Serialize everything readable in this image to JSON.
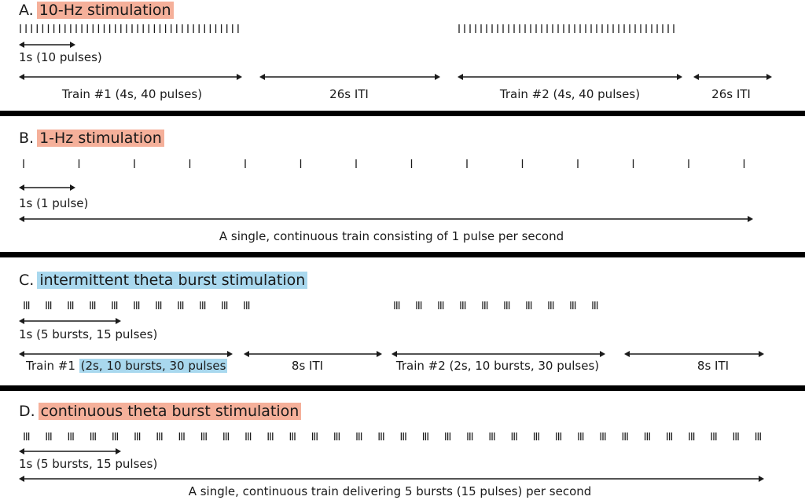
{
  "colors": {
    "salmon": "#f5b09a",
    "sky": "#a9d8ee",
    "ink": "#1a1a1a",
    "rule": "#000000"
  },
  "panels": [
    {
      "id": "a",
      "letter": "A.",
      "title": "10-Hz stimulation",
      "title_highlight": "salmon",
      "unit_label": "1s (10 pulses)",
      "segments": [
        {
          "label": "Train #1 (4s, 40 pulses)"
        },
        {
          "label": "26s ITI"
        },
        {
          "label": "Train #2 (4s, 40 pulses)"
        },
        {
          "label": "26s ITI"
        }
      ]
    },
    {
      "id": "b",
      "letter": "B.",
      "title": "1-Hz stimulation",
      "title_highlight": "salmon",
      "unit_label": "1s (1 pulse)",
      "segments": [
        {
          "label": "A single, continuous train consisting of 1 pulse per second"
        }
      ]
    },
    {
      "id": "c",
      "letter": "C.",
      "title": "intermittent theta burst stimulation",
      "title_highlight": "sky",
      "unit_label": "1s (5 bursts, 15 pulses)",
      "segments": [
        {
          "label_prefix": "Train #1",
          "label_highlight": "(2s, 10 bursts, 30 pulses"
        },
        {
          "label": "8s ITI"
        },
        {
          "label": "Train #2 (2s, 10 bursts, 30 pulses)"
        },
        {
          "label": "8s ITI"
        }
      ]
    },
    {
      "id": "d",
      "letter": "D.",
      "title": "continuous theta burst stimulation",
      "title_highlight": "salmon",
      "unit_label": "1s (5 bursts, 15 pulses)",
      "segments": [
        {
          "label": "A single, continuous train delivering 5 bursts (15 pulses) per second"
        }
      ]
    }
  ]
}
